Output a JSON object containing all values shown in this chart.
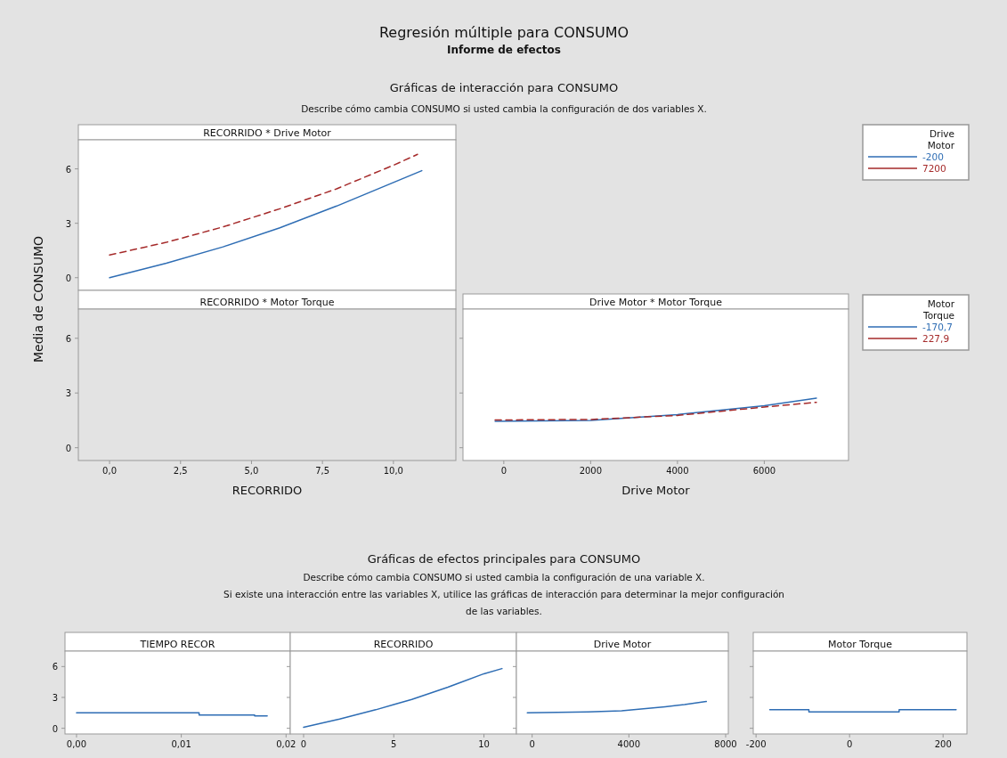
{
  "chart_data": [
    {
      "type": "line",
      "title": "RECORRIDO * Drive Motor",
      "ylabel": "Media de CONSUMO",
      "legend_title": "Drive Motor",
      "legend": "right",
      "tick_labels": "y",
      "annotations": [
        "Regresión múltiple para CONSUMO",
        "Informe de efectos",
        "Gráficas de interacción para CONSUMO",
        "Describe cómo cambia CONSUMO si usted cambia la configuración de dos variables X."
      ],
      "xlim": [
        -1.1,
        12.2
      ],
      "ylim": [
        -0.7,
        7.6
      ],
      "xticks": [
        {
          "value": 0,
          "label": null
        },
        {
          "value": 2.5,
          "label": null
        },
        {
          "value": 5,
          "label": null
        },
        {
          "value": 7.5,
          "label": null
        },
        {
          "value": 10,
          "label": null
        }
      ],
      "yticks": [
        0,
        3,
        6
      ],
      "series": [
        {
          "name": "-200",
          "color": "#2e6db4",
          "line_style": "solid",
          "x": [
            0,
            2,
            4,
            6,
            8,
            10,
            11
          ],
          "values": [
            0,
            0.8,
            1.7,
            2.75,
            3.95,
            5.25,
            5.9
          ]
        },
        {
          "name": "7200",
          "color": "#a52a2a",
          "line_style": "dashed",
          "x": [
            0,
            2,
            4,
            6,
            8,
            10,
            10.85
          ],
          "values": [
            1.25,
            1.95,
            2.8,
            3.8,
            4.9,
            6.2,
            6.8
          ]
        }
      ]
    },
    {
      "type": "line",
      "title": "RECORRIDO * Motor Torque",
      "xlabel": "RECORRIDO",
      "xlim": [
        -1.1,
        12.2
      ],
      "ylim": [
        -0.7,
        7.6
      ],
      "xticks": [
        {
          "value": 0,
          "label": "0,0"
        },
        {
          "value": 2.5,
          "label": "2,5"
        },
        {
          "value": 5,
          "label": "5,0"
        },
        {
          "value": 7.5,
          "label": "7,5"
        },
        {
          "value": 10,
          "label": "10,0"
        }
      ],
      "yticks": [
        0,
        3,
        6
      ]
    },
    {
      "type": "line",
      "title": "Drive Motor  * Motor Torque",
      "xlabel": "Drive Motor",
      "legend_title": "Motor Torque",
      "legend": "right",
      "tick_labels": "x",
      "xlim": [
        -940,
        7940
      ],
      "ylim": [
        -0.7,
        7.6
      ],
      "xticks": [
        0,
        2000,
        4000,
        6000
      ],
      "yticks": [
        0,
        3,
        6
      ],
      "series": [
        {
          "name": "-170,7",
          "color": "#2e6db4",
          "line_style": "solid",
          "x": [
            -200,
            2000,
            4000,
            6000,
            7200
          ],
          "values": [
            1.45,
            1.5,
            1.82,
            2.3,
            2.72
          ]
        },
        {
          "name": "227,9",
          "color": "#a52a2a",
          "line_style": "dashed",
          "x": [
            -200,
            2000,
            4000,
            6000,
            7200
          ],
          "values": [
            1.52,
            1.55,
            1.77,
            2.23,
            2.49
          ]
        }
      ]
    },
    {
      "type": "line",
      "title": "TIEMPO RECOR",
      "annotations": [
        "Gráficas de efectos principales para CONSUMO",
        "Describe cómo cambia CONSUMO si usted cambia la configuración de una variable X.",
        "Si existe una interacción entre las variables X, utilice las gráficas de interacción para determinar la mejor configuración",
        "de las variables."
      ],
      "xlim": [
        -0.0011,
        0.0204
      ],
      "ylim": [
        -0.55,
        7.5
      ],
      "xticks": [
        {
          "value": 0,
          "label": "0,00"
        },
        {
          "value": 0.01,
          "label": "0,01"
        },
        {
          "value": 0.02,
          "label": "0,02"
        }
      ],
      "yticks": [
        0,
        3,
        6
      ],
      "series": [
        {
          "color": "#2e6db4",
          "x": [
            0,
            0.0117,
            0.0117,
            0.017,
            0.017,
            0.0182
          ],
          "values": [
            1.5,
            1.5,
            1.3,
            1.3,
            1.2,
            1.2
          ]
        }
      ]
    },
    {
      "type": "line",
      "title": "RECORRIDO",
      "tick_labels": "x",
      "xlim": [
        -0.74,
        11.8
      ],
      "ylim": [
        -0.55,
        7.5
      ],
      "xticks": [
        0,
        5,
        10
      ],
      "yticks": [
        0,
        3,
        6
      ],
      "series": [
        {
          "color": "#2e6db4",
          "x": [
            0,
            2,
            4,
            5,
            6,
            8,
            10,
            11
          ],
          "values": [
            0.1,
            0.9,
            1.8,
            2.3,
            2.8,
            4,
            5.3,
            5.8
          ]
        }
      ]
    },
    {
      "type": "line",
      "title": "Drive Motor",
      "tick_labels": "x",
      "xlim": [
        -650,
        8110
      ],
      "ylim": [
        -0.55,
        7.5
      ],
      "xticks": [
        0,
        4000,
        8000
      ],
      "yticks": [
        0,
        3,
        6
      ],
      "series": [
        {
          "color": "#2e6db4",
          "x": [
            -200,
            2300,
            3700,
            4600,
            5500,
            6300,
            7200
          ],
          "values": [
            1.5,
            1.6,
            1.7,
            1.9,
            2.1,
            2.3,
            2.6
          ]
        }
      ]
    },
    {
      "type": "line",
      "title": "Motor Torque",
      "tick_labels": "x",
      "xlim": [
        -206,
        251
      ],
      "ylim": [
        -0.55,
        7.5
      ],
      "xticks": [
        -200,
        0,
        200
      ],
      "yticks": [
        0,
        3,
        6
      ],
      "series": [
        {
          "color": "#2e6db4",
          "x": [
            -170.7,
            -87,
            -87,
            106,
            106,
            227.9
          ],
          "values": [
            1.8,
            1.8,
            1.6,
            1.6,
            1.8,
            1.8
          ]
        }
      ]
    }
  ]
}
